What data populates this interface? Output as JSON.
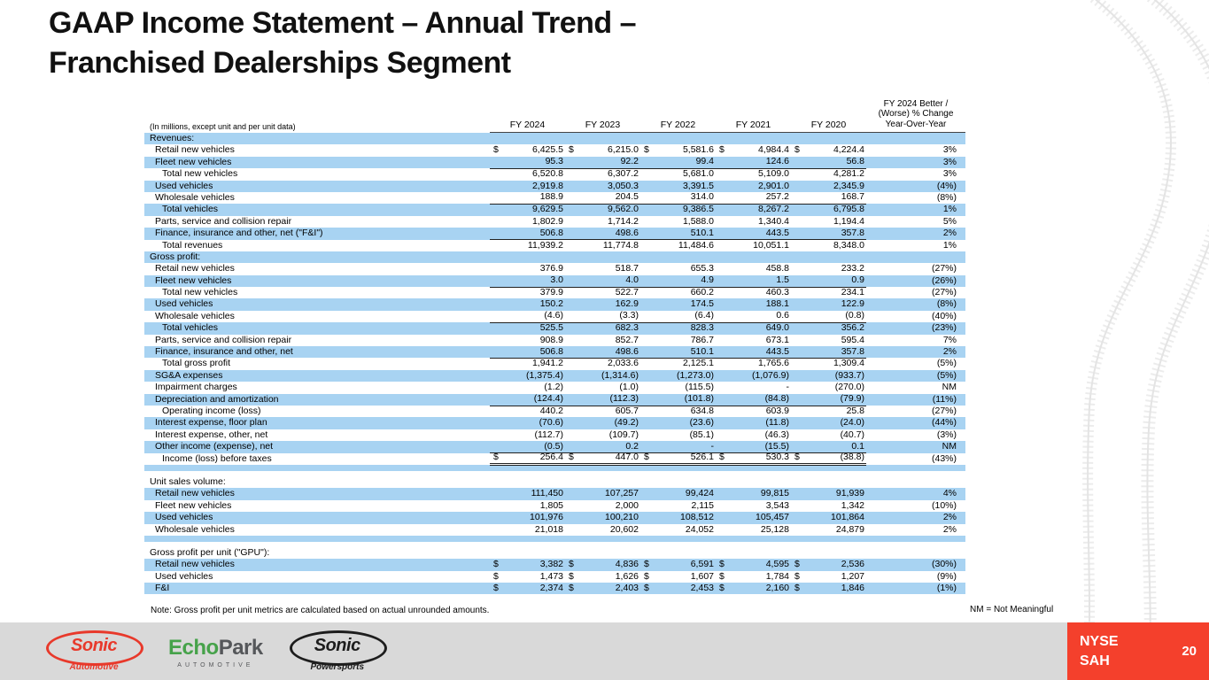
{
  "slide": {
    "title_line1": "GAAP Income Statement – Annual Trend –",
    "title_line2": "Franchised Dealerships Segment",
    "note": "Note: Gross profit per unit metrics are calculated based on actual unrounded amounts.",
    "nm_note": "NM = Not Meaningful",
    "ticker_line1": "NYSE",
    "ticker_line2": "SAH",
    "page_number": "20"
  },
  "colors": {
    "stripe_blue": "#A8D3F2",
    "accent_red": "#F4402C",
    "band_gray": "#D9D9D9",
    "echo_green": "#46A24A"
  },
  "logos": {
    "sonic_automotive": {
      "name": "Sonic",
      "sub": "Automotive"
    },
    "echopark": {
      "part1": "Echo",
      "part2": "Park",
      "sub": "AUTOMOTIVE"
    },
    "sonic_powersports": {
      "name": "Sonic",
      "sub": "Powersports"
    }
  },
  "table": {
    "unit_label": "(In millions, except unit and per unit data)",
    "columns": [
      "FY 2024",
      "FY 2023",
      "FY 2022",
      "FY 2021",
      "FY 2020"
    ],
    "change_header": [
      "FY 2024 Better /",
      "(Worse) % Change",
      "Year-Over-Year"
    ],
    "rows": [
      {
        "type": "section",
        "label": "Revenues:"
      },
      {
        "type": "data",
        "label": "Retail new vehicles",
        "indent": 1,
        "dollar": true,
        "values": [
          "6,425.5",
          "6,215.0",
          "5,581.6",
          "4,984.4",
          "4,224.4"
        ],
        "change": "3%"
      },
      {
        "type": "data",
        "label": "Fleet new vehicles",
        "indent": 1,
        "values": [
          "95.3",
          "92.2",
          "99.4",
          "124.6",
          "56.8"
        ],
        "change": "3%",
        "underline": "single"
      },
      {
        "type": "data",
        "label": "Total new vehicles",
        "indent": 2,
        "values": [
          "6,520.8",
          "6,307.2",
          "5,681.0",
          "5,109.0",
          "4,281.2"
        ],
        "change": "3%"
      },
      {
        "type": "data",
        "label": "Used vehicles",
        "indent": 1,
        "values": [
          "2,919.8",
          "3,050.3",
          "3,391.5",
          "2,901.0",
          "2,345.9"
        ],
        "change": "(4%)"
      },
      {
        "type": "data",
        "label": "Wholesale vehicles",
        "indent": 1,
        "values": [
          "188.9",
          "204.5",
          "314.0",
          "257.2",
          "168.7"
        ],
        "change": "(8%)",
        "underline": "single"
      },
      {
        "type": "data",
        "label": "Total vehicles",
        "indent": 2,
        "values": [
          "9,629.5",
          "9,562.0",
          "9,386.5",
          "8,267.2",
          "6,795.8"
        ],
        "change": "1%"
      },
      {
        "type": "data",
        "label": "Parts, service and collision repair",
        "indent": 1,
        "values": [
          "1,802.9",
          "1,714.2",
          "1,588.0",
          "1,340.4",
          "1,194.4"
        ],
        "change": "5%"
      },
      {
        "type": "data",
        "label": "Finance, insurance and other, net (\"F&I\")",
        "indent": 1,
        "values": [
          "506.8",
          "498.6",
          "510.1",
          "443.5",
          "357.8"
        ],
        "change": "2%",
        "underline": "single"
      },
      {
        "type": "data",
        "label": "Total revenues",
        "indent": 2,
        "values": [
          "11,939.2",
          "11,774.8",
          "11,484.6",
          "10,051.1",
          "8,348.0"
        ],
        "change": "1%"
      },
      {
        "type": "section",
        "label": "Gross profit:"
      },
      {
        "type": "data",
        "label": "Retail new vehicles",
        "indent": 1,
        "values": [
          "376.9",
          "518.7",
          "655.3",
          "458.8",
          "233.2"
        ],
        "change": "(27%)"
      },
      {
        "type": "data",
        "label": "Fleet new vehicles",
        "indent": 1,
        "values": [
          "3.0",
          "4.0",
          "4.9",
          "1.5",
          "0.9"
        ],
        "change": "(26%)",
        "underline": "single"
      },
      {
        "type": "data",
        "label": "Total new vehicles",
        "indent": 2,
        "values": [
          "379.9",
          "522.7",
          "660.2",
          "460.3",
          "234.1"
        ],
        "change": "(27%)"
      },
      {
        "type": "data",
        "label": "Used vehicles",
        "indent": 1,
        "values": [
          "150.2",
          "162.9",
          "174.5",
          "188.1",
          "122.9"
        ],
        "change": "(8%)"
      },
      {
        "type": "data",
        "label": "Wholesale vehicles",
        "indent": 1,
        "values": [
          "(4.6)",
          "(3.3)",
          "(6.4)",
          "0.6",
          "(0.8)"
        ],
        "change": "(40%)",
        "underline": "single"
      },
      {
        "type": "data",
        "label": "Total vehicles",
        "indent": 2,
        "values": [
          "525.5",
          "682.3",
          "828.3",
          "649.0",
          "356.2"
        ],
        "change": "(23%)"
      },
      {
        "type": "data",
        "label": "Parts, service and collision repair",
        "indent": 1,
        "values": [
          "908.9",
          "852.7",
          "786.7",
          "673.1",
          "595.4"
        ],
        "change": "7%"
      },
      {
        "type": "data",
        "label": "Finance, insurance and other, net",
        "indent": 1,
        "values": [
          "506.8",
          "498.6",
          "510.1",
          "443.5",
          "357.8"
        ],
        "change": "2%",
        "underline": "single"
      },
      {
        "type": "data",
        "label": "Total gross profit",
        "indent": 2,
        "values": [
          "1,941.2",
          "2,033.6",
          "2,125.1",
          "1,765.6",
          "1,309.4"
        ],
        "change": "(5%)"
      },
      {
        "type": "data",
        "label": "SG&A expenses",
        "indent": 1,
        "values": [
          "(1,375.4)",
          "(1,314.6)",
          "(1,273.0)",
          "(1,076.9)",
          "(933.7)"
        ],
        "change": "(5%)"
      },
      {
        "type": "data",
        "label": "Impairment charges",
        "indent": 1,
        "values": [
          "(1.2)",
          "(1.0)",
          "(115.5)",
          "-",
          "(270.0)"
        ],
        "change": "NM"
      },
      {
        "type": "data",
        "label": "Depreciation and amortization",
        "indent": 1,
        "values": [
          "(124.4)",
          "(112.3)",
          "(101.8)",
          "(84.8)",
          "(79.9)"
        ],
        "change": "(11%)",
        "underline": "single"
      },
      {
        "type": "data",
        "label": "Operating income (loss)",
        "indent": 2,
        "values": [
          "440.2",
          "605.7",
          "634.8",
          "603.9",
          "25.8"
        ],
        "change": "(27%)"
      },
      {
        "type": "data",
        "label": "Interest expense, floor plan",
        "indent": 1,
        "values": [
          "(70.6)",
          "(49.2)",
          "(23.6)",
          "(11.8)",
          "(24.0)"
        ],
        "change": "(44%)"
      },
      {
        "type": "data",
        "label": "Interest expense, other, net",
        "indent": 1,
        "values": [
          "(112.7)",
          "(109.7)",
          "(85.1)",
          "(46.3)",
          "(40.7)"
        ],
        "change": "(3%)"
      },
      {
        "type": "data",
        "label": "Other income (expense), net",
        "indent": 1,
        "values": [
          "(0.5)",
          "0.2",
          "-",
          "(15.5)",
          "0.1"
        ],
        "change": "NM",
        "underline": "single"
      },
      {
        "type": "data",
        "label": "Income (loss) before taxes",
        "indent": 2,
        "dollar": true,
        "values": [
          "256.4",
          "447.0",
          "526.1",
          "530.3",
          "(38.8)"
        ],
        "change": "(43%)",
        "underline": "double"
      },
      {
        "type": "spacer"
      },
      {
        "type": "section",
        "label": "Unit sales volume:"
      },
      {
        "type": "data",
        "label": "Retail new vehicles",
        "indent": 1,
        "values": [
          "111,450",
          "107,257",
          "99,424",
          "99,815",
          "91,939"
        ],
        "change": "4%"
      },
      {
        "type": "data",
        "label": "Fleet new vehicles",
        "indent": 1,
        "values": [
          "1,805",
          "2,000",
          "2,115",
          "3,543",
          "1,342"
        ],
        "change": "(10%)"
      },
      {
        "type": "data",
        "label": "Used vehicles",
        "indent": 1,
        "values": [
          "101,976",
          "100,210",
          "108,512",
          "105,457",
          "101,864"
        ],
        "change": "2%"
      },
      {
        "type": "data",
        "label": "Wholesale vehicles",
        "indent": 1,
        "values": [
          "21,018",
          "20,602",
          "24,052",
          "25,128",
          "24,879"
        ],
        "change": "2%"
      },
      {
        "type": "spacer"
      },
      {
        "type": "section",
        "label": "Gross profit per unit (\"GPU\"):"
      },
      {
        "type": "data",
        "label": "Retail new vehicles",
        "indent": 1,
        "dollar": true,
        "values": [
          "3,382",
          "4,836",
          "6,591",
          "4,595",
          "2,536"
        ],
        "change": "(30%)"
      },
      {
        "type": "data",
        "label": "Used vehicles",
        "indent": 1,
        "dollar": true,
        "values": [
          "1,473",
          "1,626",
          "1,607",
          "1,784",
          "1,207"
        ],
        "change": "(9%)"
      },
      {
        "type": "data",
        "label": "F&I",
        "indent": 1,
        "dollar": true,
        "values": [
          "2,374",
          "2,403",
          "2,453",
          "2,160",
          "1,846"
        ],
        "change": "(1%)"
      }
    ]
  }
}
